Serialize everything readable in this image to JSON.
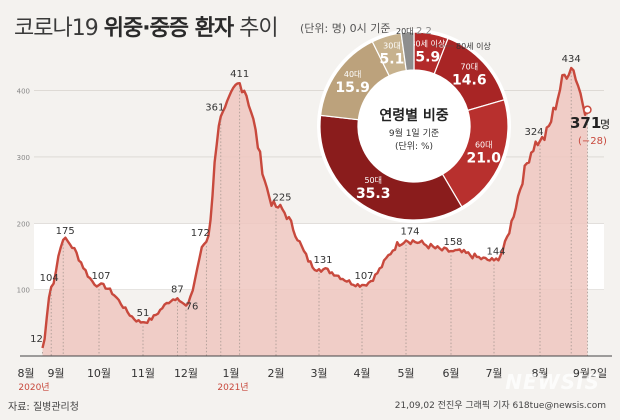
{
  "title": {
    "prefix": "코로나19 ",
    "bold": "위중·중증 환자",
    "suffix": " 추이"
  },
  "unit_note": "(단위: 명) 0시 기준",
  "source": "자료: 질병관리청",
  "credit": "21,09,02  전진우 그래픽 기자 618tue@newsis.com",
  "watermark": "NEWSIS",
  "chart_data": [
    {
      "type": "area",
      "title": "",
      "ylim": [
        0,
        440
      ],
      "yticks": [
        100,
        200,
        300,
        400
      ],
      "grid": true,
      "x_labels": [
        "8월",
        "9월",
        "10월",
        "11월",
        "12월",
        "1월",
        "2월",
        "3월",
        "4월",
        "5월",
        "6월",
        "7월",
        "8월",
        "9월2일"
      ],
      "year_labels": [
        "2020년",
        "2021년"
      ],
      "colors": {
        "line": "#c8493d",
        "fill": "#efc7c0",
        "band": "#ffffff"
      },
      "annotated_points": [
        {
          "month": "2020-08-18",
          "value": 12
        },
        {
          "month": "2020-08-27",
          "value": 104
        },
        {
          "month": "2020-09-06",
          "value": 175
        },
        {
          "month": "2020-10-01",
          "value": 107
        },
        {
          "month": "2020-11-01",
          "value": 51
        },
        {
          "month": "2020-11-25",
          "value": 87
        },
        {
          "month": "2020-12-01",
          "value": 76
        },
        {
          "month": "2020-12-15",
          "value": 172
        },
        {
          "month": "2020-12-25",
          "value": 361
        },
        {
          "month": "2021-01-07",
          "value": 411
        },
        {
          "month": "2021-02-01",
          "value": 225
        },
        {
          "month": "2021-03-01",
          "value": 131
        },
        {
          "month": "2021-04-01",
          "value": 107
        },
        {
          "month": "2021-05-01",
          "value": 174
        },
        {
          "month": "2021-06-01",
          "value": 158
        },
        {
          "month": "2021-07-01",
          "value": 144
        },
        {
          "month": "2021-08-01",
          "value": 324
        },
        {
          "month": "2021-08-22",
          "value": 434
        },
        {
          "month": "2021-09-02",
          "value": 371
        }
      ],
      "current": {
        "value": "371",
        "unit": "명",
        "change": "(−28)"
      }
    },
    {
      "type": "pie",
      "title": "연령별 비중",
      "subtitle": "9월 1일 기준",
      "unit": "(단위: %)",
      "slices": [
        {
          "label": "80세 이상",
          "value": 5.9,
          "color": "#b32a2a"
        },
        {
          "label": "70대",
          "value": 14.6,
          "color": "#a82525"
        },
        {
          "label": "60대",
          "value": 21.0,
          "color": "#b8302e"
        },
        {
          "label": "50대",
          "value": 35.3,
          "color": "#8a1c1c"
        },
        {
          "label": "40대",
          "value": 15.9,
          "color": "#bca27c"
        },
        {
          "label": "30대",
          "value": 5.1,
          "color": "#c7b28e"
        },
        {
          "label": "20대",
          "value": 2.2,
          "color": "#8e8e8e"
        }
      ]
    }
  ]
}
